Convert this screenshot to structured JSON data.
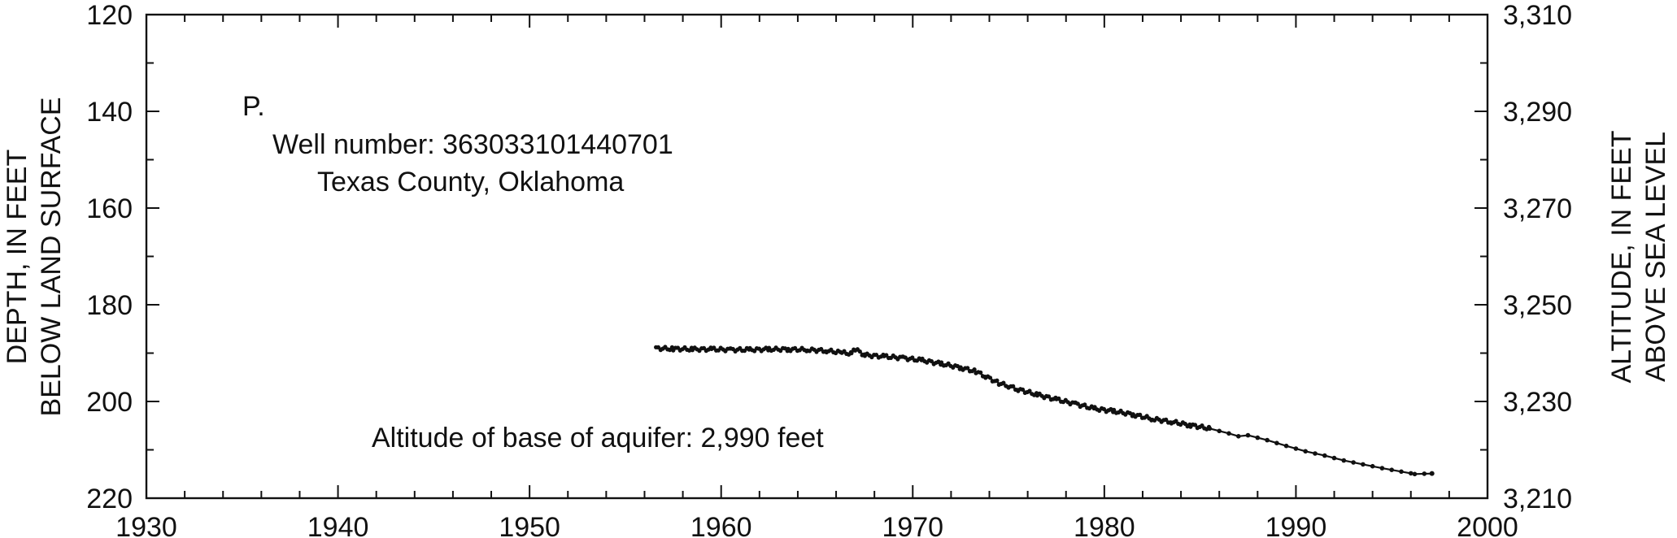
{
  "chart_data": {
    "type": "line",
    "panel_letter": "P.",
    "well_label": "Well number: 363033101440701",
    "county_label": "Texas County, Oklahoma",
    "base_label": "Altitude of base of aquifer: 2,990 feet",
    "ylabel_left_1": "DEPTH, IN FEET",
    "ylabel_left_2": "BELOW LAND SURFACE",
    "ylabel_right_1": "ALTITUDE, IN FEET",
    "ylabel_right_2": "ABOVE SEA LEVEL",
    "xlim": [
      1930,
      2000
    ],
    "ylim_left": [
      120,
      220
    ],
    "ylim_right": [
      3310,
      3210
    ],
    "left_axis_inverted": true,
    "x_ticks": [
      "1930",
      "1940",
      "1950",
      "1960",
      "1970",
      "1980",
      "1990",
      "2000"
    ],
    "y_ticks_left": [
      "120",
      "140",
      "160",
      "180",
      "200",
      "220"
    ],
    "y_ticks_right": [
      "3,310",
      "3,290",
      "3,270",
      "3,250",
      "3,230",
      "3,210"
    ],
    "grid": false,
    "line_color": "#111111",
    "series": [
      {
        "x": [
          1956.6,
          1957.5,
          1958.5,
          1959.5,
          1960.5,
          1961.5,
          1962.5,
          1963.5,
          1964.5,
          1965.5,
          1966.3,
          1966.8,
          1967.0,
          1967.5,
          1968.5,
          1969.5,
          1970.5,
          1971.5,
          1972.5,
          1973.3,
          1973.8,
          1974.5,
          1975.0,
          1975.5,
          1976.5,
          1977.5,
          1978.5,
          1979.5,
          1980.5,
          1981.5,
          1982.5,
          1983.5,
          1984.5,
          1985.5,
          1986.5,
          1987.0,
          1987.5,
          1988.5,
          1989.5,
          1990.5,
          1991.5,
          1992.5,
          1993.5,
          1994.5,
          1995.5,
          1996.2,
          1997.1
        ],
        "y": [
          189.0,
          189.1,
          189.2,
          189.2,
          189.3,
          189.3,
          189.2,
          189.2,
          189.3,
          189.5,
          189.9,
          190.1,
          189.2,
          190.4,
          190.7,
          191.0,
          191.5,
          192.2,
          193.0,
          193.8,
          194.8,
          196.2,
          196.8,
          197.5,
          198.6,
          199.6,
          200.5,
          201.5,
          202.0,
          202.7,
          203.6,
          204.2,
          204.9,
          205.6,
          206.6,
          207.2,
          207.0,
          208.0,
          209.2,
          210.3,
          211.2,
          212.2,
          213.0,
          213.8,
          214.5,
          215.0,
          214.9
        ]
      }
    ]
  }
}
